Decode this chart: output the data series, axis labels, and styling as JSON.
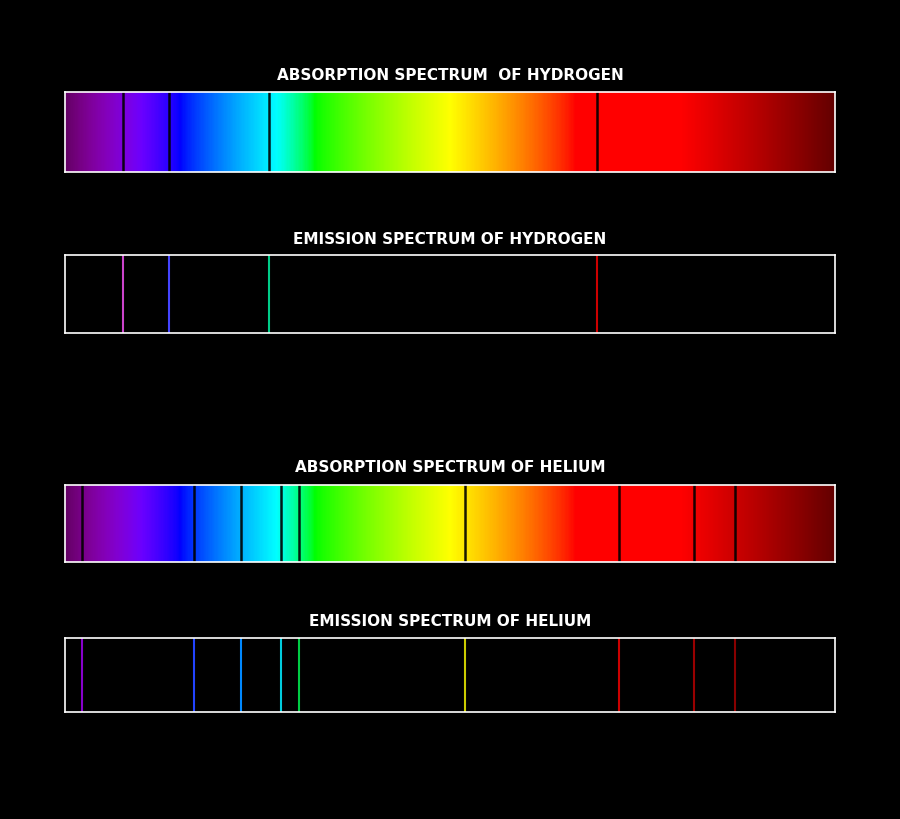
{
  "bg_color": "#000000",
  "title_color": "#ffffff",
  "title_fontsize": 11,
  "bar_height": 0.08,
  "spectra": {
    "wavelength_min": 380,
    "wavelength_max": 780
  },
  "panels": [
    {
      "title": "ABSORPTION SPECTRUM  OF HYDROGEN",
      "type": "absorption",
      "lines": [
        {
          "wl": 410.2,
          "color": "#8B00FF"
        },
        {
          "wl": 434.0,
          "color": "#0000CD"
        },
        {
          "wl": 486.1,
          "color": "#00BFFF"
        },
        {
          "wl": 656.3,
          "color": "#CC0000"
        }
      ]
    },
    {
      "title": "EMISSION SPECTRUM OF HYDROGEN",
      "type": "emission",
      "lines": [
        {
          "wl": 410.2,
          "color": "#CC44CC"
        },
        {
          "wl": 434.0,
          "color": "#4444FF"
        },
        {
          "wl": 486.1,
          "color": "#00CC88"
        },
        {
          "wl": 656.3,
          "color": "#CC0000"
        }
      ]
    },
    {
      "title": "ABSORPTION SPECTRUM OF HELIUM",
      "type": "absorption",
      "lines": [
        {
          "wl": 388.9,
          "color": "#6600AA"
        },
        {
          "wl": 447.1,
          "color": "#0000CC"
        },
        {
          "wl": 471.3,
          "color": "#0055FF"
        },
        {
          "wl": 492.2,
          "color": "#00AACC"
        },
        {
          "wl": 501.6,
          "color": "#00BB88"
        },
        {
          "wl": 587.6,
          "color": "#AA4400"
        },
        {
          "wl": 667.8,
          "color": "#AA0000"
        },
        {
          "wl": 706.5,
          "color": "#880000"
        },
        {
          "wl": 728.1,
          "color": "#770000"
        }
      ]
    },
    {
      "title": "EMISSION SPECTRUM OF HELIUM",
      "type": "emission",
      "lines": [
        {
          "wl": 388.9,
          "color": "#8800CC"
        },
        {
          "wl": 447.1,
          "color": "#2244FF"
        },
        {
          "wl": 471.3,
          "color": "#0088FF"
        },
        {
          "wl": 492.2,
          "color": "#00CCDD"
        },
        {
          "wl": 501.6,
          "color": "#00CC44"
        },
        {
          "wl": 587.6,
          "color": "#CCCC00"
        },
        {
          "wl": 667.8,
          "color": "#CC0000"
        },
        {
          "wl": 706.5,
          "color": "#990000"
        },
        {
          "wl": 728.1,
          "color": "#880000"
        }
      ]
    }
  ]
}
